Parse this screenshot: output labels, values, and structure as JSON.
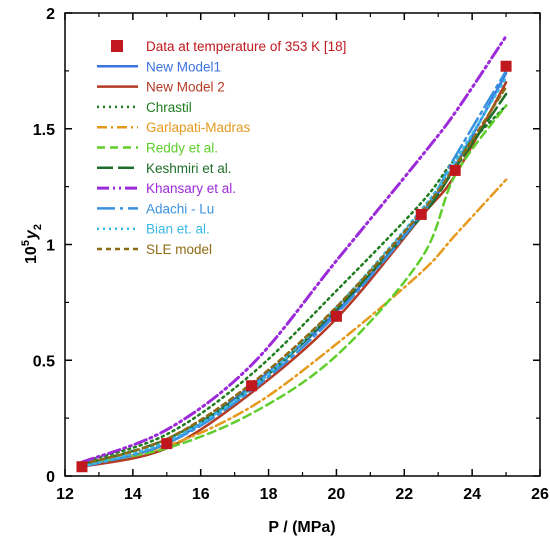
{
  "chart_data": {
    "type": "line",
    "title": "",
    "xlabel": "P / (MPa)",
    "ylabel": {
      "prefix": "10",
      "sup": "5",
      "var": "y",
      "sub": "2"
    },
    "xlim": [
      12,
      26
    ],
    "ylim": [
      0,
      2
    ],
    "xticks": [
      "12",
      "14",
      "16",
      "18",
      "20",
      "22",
      "24",
      "26"
    ],
    "yticks": [
      "0",
      "0.5",
      "1",
      "1.5",
      "2"
    ],
    "grid": false,
    "legend_position": "top-left",
    "data_points": {
      "name": "Data at temperature of 353 K [18]",
      "color": "#c0181e",
      "x": [
        12.5,
        15,
        17.5,
        20,
        22.5,
        23.5,
        25
      ],
      "y": [
        0.04,
        0.14,
        0.39,
        0.69,
        1.13,
        1.32,
        1.77
      ]
    },
    "series": [
      {
        "name": "New Model1",
        "color": "#3b73e0",
        "dash": "solid",
        "width": 2.5,
        "x": [
          12.5,
          15,
          17.5,
          20,
          22.5,
          23.5,
          25
        ],
        "y": [
          0.04,
          0.14,
          0.39,
          0.71,
          1.13,
          1.34,
          1.74
        ]
      },
      {
        "name": "New Model 2",
        "color": "#b53a24",
        "dash": "solid",
        "width": 2.5,
        "x": [
          12.5,
          15,
          17.5,
          20,
          22.5,
          23.5,
          25
        ],
        "y": [
          0.04,
          0.12,
          0.36,
          0.68,
          1.12,
          1.3,
          1.7
        ]
      },
      {
        "name": "Chrastil",
        "color": "#1f7d1f",
        "dash": "dot",
        "width": 2.5,
        "x": [
          12.5,
          15,
          17.5,
          20,
          22.5,
          23.5,
          25
        ],
        "y": [
          0.06,
          0.18,
          0.44,
          0.8,
          1.18,
          1.37,
          1.6
        ]
      },
      {
        "name": "Garlapati-Madras",
        "color": "#e59a1e",
        "dash": "dashdot",
        "width": 2.5,
        "x": [
          12.5,
          15,
          17.5,
          20,
          22.5,
          23.5,
          25
        ],
        "y": [
          0.05,
          0.13,
          0.3,
          0.57,
          0.88,
          1.04,
          1.28
        ]
      },
      {
        "name": "Reddy et al.",
        "color": "#5fce2c",
        "dash": "dash",
        "width": 2.5,
        "x": [
          12.5,
          15,
          17.5,
          20,
          22.5,
          23.5,
          25
        ],
        "y": [
          0.05,
          0.12,
          0.27,
          0.52,
          0.94,
          1.3,
          1.6
        ]
      },
      {
        "name": "Keshmiri et al.",
        "color": "#1c6e2a",
        "dash": "longdash",
        "width": 2.5,
        "x": [
          12.5,
          15,
          17.5,
          20,
          22.5,
          23.5,
          25
        ],
        "y": [
          0.05,
          0.16,
          0.38,
          0.72,
          1.12,
          1.33,
          1.65
        ]
      },
      {
        "name": "Khansary et al.",
        "color": "#9b2ad8",
        "dash": "dashdotdot",
        "width": 3,
        "x": [
          12.5,
          15,
          17.5,
          20,
          22.5,
          23.5,
          25
        ],
        "y": [
          0.06,
          0.2,
          0.48,
          0.93,
          1.38,
          1.57,
          1.9
        ]
      },
      {
        "name": "Adachi - Lu",
        "color": "#3a92df",
        "dash": "longdashdot",
        "width": 2.5,
        "x": [
          12.5,
          15,
          17.5,
          20,
          22.5,
          23.5,
          25
        ],
        "y": [
          0.04,
          0.14,
          0.37,
          0.7,
          1.13,
          1.38,
          1.75
        ]
      },
      {
        "name": "Bian et. al.",
        "color": "#3ab9e6",
        "dash": "dot",
        "width": 2.5,
        "x": [
          12.5,
          15,
          17.5,
          20,
          22.5,
          23.5,
          25
        ],
        "y": [
          0.04,
          0.15,
          0.38,
          0.73,
          1.15,
          1.36,
          1.72
        ]
      },
      {
        "name": "SLE model",
        "color": "#8e6a14",
        "dash": "shortdash",
        "width": 2.5,
        "x": [
          12.5,
          15,
          17.5,
          20,
          22.5,
          23.5,
          25
        ],
        "y": [
          0.05,
          0.16,
          0.4,
          0.73,
          1.14,
          1.34,
          1.68
        ]
      }
    ]
  }
}
